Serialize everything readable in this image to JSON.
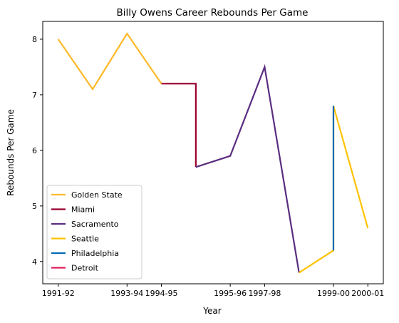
{
  "chart_data": {
    "type": "line",
    "title": "Billy Owens Career Rebounds Per Game",
    "xlabel": "Year",
    "ylabel": "Rebounds Per Game",
    "x_ticks": [
      {
        "x": 0,
        "label": "1991-92"
      },
      {
        "x": 2,
        "label": "1993-94"
      },
      {
        "x": 3,
        "label": "1994-95"
      },
      {
        "x": 5,
        "label": "1995-96"
      },
      {
        "x": 6,
        "label": "1997-98"
      },
      {
        "x": 8,
        "label": "1999-00"
      },
      {
        "x": 9,
        "label": "2000-01"
      }
    ],
    "y_ticks": [
      4,
      5,
      6,
      7,
      8
    ],
    "xlim": [
      -0.45,
      9.45
    ],
    "ylim": [
      3.6,
      8.32
    ],
    "grid": false,
    "legend_position": "lower-left",
    "series": [
      {
        "name": "Golden State",
        "color": "#FDB927",
        "points": [
          [
            0,
            8.0
          ],
          [
            1,
            7.1
          ],
          [
            2,
            8.1
          ],
          [
            3,
            7.2
          ]
        ]
      },
      {
        "name": "Miami",
        "color": "#98002E",
        "points": [
          [
            3,
            7.2
          ],
          [
            4,
            7.2
          ],
          [
            4,
            5.7
          ]
        ]
      },
      {
        "name": "Sacramento",
        "color": "#5A2D81",
        "points": [
          [
            4,
            5.7
          ],
          [
            5,
            5.9
          ],
          [
            6,
            7.5
          ],
          [
            7,
            3.8
          ]
        ]
      },
      {
        "name": "Seattle",
        "color": "#FFC200",
        "points": [
          [
            7,
            3.8
          ],
          [
            8,
            4.2
          ],
          [
            8,
            6.8
          ],
          [
            9,
            4.6
          ]
        ]
      },
      {
        "name": "Philadelphia",
        "color": "#006BB6",
        "points": [
          [
            8,
            4.2
          ],
          [
            8,
            6.8
          ]
        ]
      },
      {
        "name": "Detroit",
        "color": "#E01E5A",
        "points": []
      }
    ]
  }
}
